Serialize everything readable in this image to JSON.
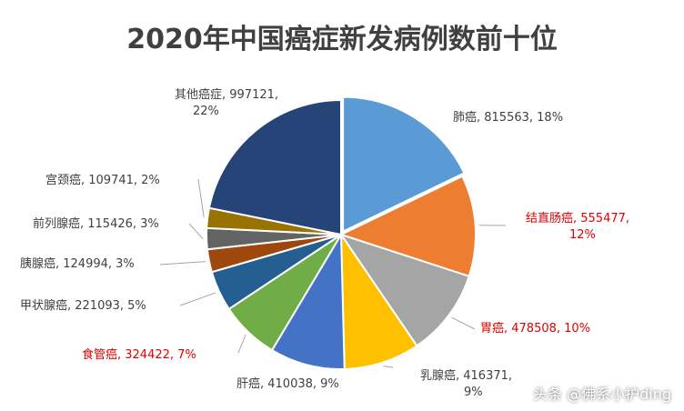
{
  "chart_data": {
    "type": "pie",
    "title": "2020年中国癌症新发病例数前十位",
    "slices": [
      {
        "label": "肺癌",
        "value": 815563,
        "percent": "18%",
        "color": "#5b9bd5",
        "text_line1": "肺癌, 815563, 18%",
        "text_line2": ""
      },
      {
        "label": "结直肠癌",
        "value": 555477,
        "percent": "12%",
        "color": "#ed7d31",
        "text_line1": "结直肠癌, 555477,",
        "text_line2": "12%"
      },
      {
        "label": "胃癌",
        "value": 478508,
        "percent": "10%",
        "color": "#a5a5a5",
        "text_line1": "胃癌, 478508, 10%",
        "text_line2": ""
      },
      {
        "label": "乳腺癌",
        "value": 416371,
        "percent": "9%",
        "color": "#ffc000",
        "text_line1": "乳腺癌, 416371,",
        "text_line2": "9%"
      },
      {
        "label": "肝癌",
        "value": 410038,
        "percent": "9%",
        "color": "#4472c4",
        "text_line1": "肝癌, 410038, 9%",
        "text_line2": ""
      },
      {
        "label": "食管癌",
        "value": 324422,
        "percent": "7%",
        "color": "#70ad47",
        "text_line1": "食管癌, 324422, 7%",
        "text_line2": ""
      },
      {
        "label": "甲状腺癌",
        "value": 221093,
        "percent": "5%",
        "color": "#255e91",
        "text_line1": "甲状腺癌, 221093, 5%",
        "text_line2": ""
      },
      {
        "label": "胰腺癌",
        "value": 124994,
        "percent": "3%",
        "color": "#9e480e",
        "text_line1": "胰腺癌, 124994, 3%",
        "text_line2": ""
      },
      {
        "label": "前列腺癌",
        "value": 115426,
        "percent": "3%",
        "color": "#636363",
        "text_line1": "前列腺癌, 115426, 3%",
        "text_line2": ""
      },
      {
        "label": "宫颈癌",
        "value": 109741,
        "percent": "2%",
        "color": "#997300",
        "text_line1": "宫颈癌, 109741, 2%",
        "text_line2": ""
      },
      {
        "label": "其他癌症",
        "value": 997121,
        "percent": "22%",
        "color": "#264478",
        "text_line1": "其他癌症, 997121,",
        "text_line2": "22%"
      }
    ],
    "highlighted_labels_color": "#e00000"
  },
  "watermark": "头条 @佛系小护ding"
}
